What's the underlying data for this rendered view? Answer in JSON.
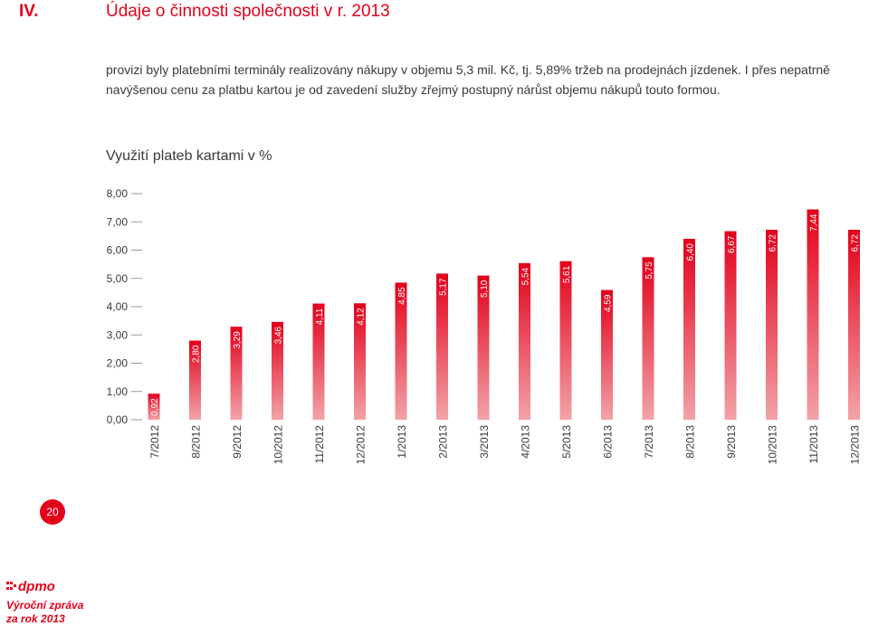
{
  "header": {
    "section_number": "IV.",
    "title": "Údaje o činnosti společnosti v r. 2013"
  },
  "intro_text": "provizi byly platebními terminály realizovány nákupy v objemu 5,3 mil. Kč, tj. 5,89% tržeb na prodejnách jízdenek. I přes nepatrně navýšenou cenu za platbu kartou je od zavedení služby zřejmý postupný nárůst objemu nákupů touto formou.",
  "chart_data": {
    "type": "bar",
    "title": "Využití plateb kartami v %",
    "categories": [
      "7/2012",
      "8/2012",
      "9/2012",
      "10/2012",
      "11/2012",
      "12/2012",
      "1/2013",
      "2/2013",
      "3/2013",
      "4/2013",
      "5/2013",
      "6/2013",
      "7/2013",
      "8/2013",
      "9/2013",
      "10/2013",
      "11/2013",
      "12/2013"
    ],
    "values": [
      0.92,
      2.8,
      3.29,
      3.46,
      4.11,
      4.12,
      4.85,
      5.17,
      5.1,
      5.54,
      5.61,
      4.59,
      5.75,
      6.4,
      6.67,
      6.72,
      7.44,
      6.72
    ],
    "value_labels": [
      "0,92",
      "2,80",
      "3,29",
      "3,46",
      "4,11",
      "4,12",
      "4,85",
      "5,17",
      "5,10",
      "5,54",
      "5,61",
      "4,59",
      "5,75",
      "6,40",
      "6,67",
      "6,72",
      "7,44",
      "6,72"
    ],
    "y_ticks": [
      0,
      1,
      2,
      3,
      4,
      5,
      6,
      7,
      8
    ],
    "y_tick_labels": [
      "0,00",
      "1,00",
      "2,00",
      "3,00",
      "4,00",
      "5,00",
      "6,00",
      "7,00",
      "8,00"
    ],
    "ylim": [
      0,
      8
    ],
    "xlabel": "",
    "ylabel": "",
    "grid": false,
    "legend": "none",
    "bar_color_top": "#e2001a",
    "bar_color_bottom": "#f2a3a8"
  },
  "footer": {
    "page_number": "20",
    "logo_text": "dpmo",
    "report_label": "Výroční zpráva za rok 2013"
  },
  "colors": {
    "accent": "#e2001a",
    "text": "#3a3a3a"
  }
}
